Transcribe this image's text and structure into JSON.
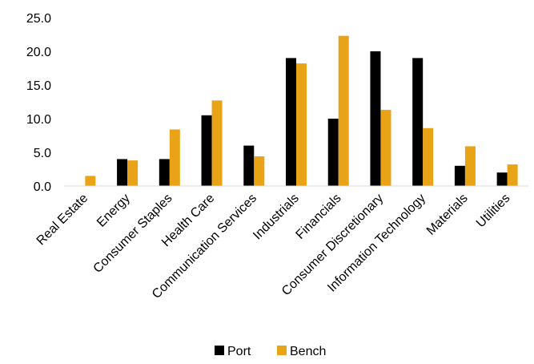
{
  "chart_data": {
    "type": "bar",
    "title": "",
    "xlabel": "",
    "ylabel": "",
    "ylim": [
      0,
      25
    ],
    "yticks": [
      "0.0",
      "5.0",
      "10.0",
      "15.0",
      "20.0",
      "25.0"
    ],
    "grid": false,
    "legend_position": "bottom",
    "categories": [
      "Real Estate",
      "Energy",
      "Consumer Staples",
      "Health Care",
      "Communication Services",
      "Industrials",
      "Financials",
      "Consumer Discretionary",
      "Information Technology",
      "Materials",
      "Utilities"
    ],
    "series": [
      {
        "name": "Port",
        "color": "#000000",
        "values": [
          0,
          4.0,
          4.0,
          10.5,
          6.0,
          19.0,
          10.0,
          20.0,
          19.0,
          3.0,
          2.0
        ]
      },
      {
        "name": "Bench",
        "color": "#E8A317",
        "values": [
          1.5,
          3.8,
          8.4,
          12.7,
          4.4,
          18.2,
          22.3,
          11.3,
          8.6,
          5.9,
          3.2
        ]
      }
    ]
  }
}
